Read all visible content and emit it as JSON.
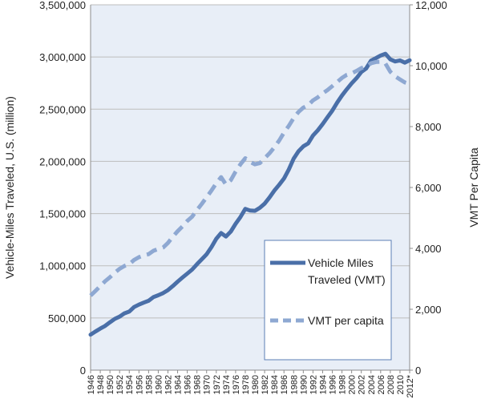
{
  "chart_data": {
    "type": "line",
    "title": "",
    "xlabel": "",
    "ylabel": "Vehicle-Miles Traveled, U.S. (million)",
    "y2label": "VMT Per Capita",
    "ylim": [
      0,
      3500000
    ],
    "y2lim": [
      0,
      12000
    ],
    "grid": true,
    "legend_position": "bottom-right",
    "colors": {
      "plot_bg": "#e8eef7",
      "grid": "#bdbdbd",
      "vmt": "#4a6fa8",
      "per_capita": "#8ea8d2",
      "legend_border": "#5b7fb6"
    },
    "x": [
      1946,
      1947,
      1948,
      1949,
      1950,
      1951,
      1952,
      1953,
      1954,
      1955,
      1956,
      1957,
      1958,
      1959,
      1960,
      1961,
      1962,
      1963,
      1964,
      1965,
      1966,
      1967,
      1968,
      1969,
      1970,
      1971,
      1972,
      1973,
      1974,
      1975,
      1976,
      1977,
      1978,
      1979,
      1980,
      1981,
      1982,
      1983,
      1984,
      1985,
      1986,
      1987,
      1988,
      1989,
      1990,
      1991,
      1992,
      1993,
      1994,
      1995,
      1996,
      1997,
      1998,
      1999,
      2000,
      2001,
      2002,
      2003,
      2004,
      2005,
      2006,
      2007,
      2008,
      2009,
      2010,
      2011,
      2012
    ],
    "x_tick_labels": [
      "1946",
      "1948",
      "1950",
      "1952",
      "1954",
      "1956",
      "1958",
      "1960",
      "1962",
      "1964",
      "1966",
      "1968",
      "1970",
      "1972",
      "1974",
      "1976",
      "1978",
      "1980",
      "1982",
      "1984",
      "1986",
      "1988",
      "1990",
      "1992",
      "1994",
      "1996",
      "1998",
      "2000",
      "2002",
      "2004",
      "2006",
      "2008",
      "2010",
      "2012*"
    ],
    "y_tick_labels": [
      "0",
      "500,000",
      "1,000,000",
      "1,500,000",
      "2,000,000",
      "2,500,000",
      "3,000,000",
      "3,500,000"
    ],
    "y_tick_values": [
      0,
      500000,
      1000000,
      1500000,
      2000000,
      2500000,
      3000000,
      3500000
    ],
    "y2_tick_labels": [
      "0",
      "2,000",
      "4,000",
      "6,000",
      "8,000",
      "10,000",
      "12,000"
    ],
    "y2_tick_values": [
      0,
      2000,
      4000,
      6000,
      8000,
      10000,
      12000
    ],
    "series": [
      {
        "name": "Vehicle Miles Traveled (VMT)",
        "legend_lines": [
          "Vehicle Miles",
          "Traveled (VMT)"
        ],
        "axis": "left",
        "style": "solid",
        "values": [
          340000,
          370000,
          398000,
          424000,
          458000,
          491000,
          513000,
          544000,
          561000,
          605000,
          628000,
          647000,
          665000,
          700000,
          718000,
          738000,
          767000,
          805000,
          847000,
          887000,
          925000,
          963000,
          1015000,
          1062000,
          1110000,
          1179000,
          1259000,
          1313000,
          1280000,
          1328000,
          1402000,
          1467000,
          1545000,
          1529000,
          1527000,
          1555000,
          1595000,
          1653000,
          1720000,
          1775000,
          1835000,
          1921000,
          2026000,
          2096000,
          2144000,
          2172000,
          2247000,
          2297000,
          2358000,
          2423000,
          2486000,
          2562000,
          2631000,
          2691000,
          2747000,
          2797000,
          2856000,
          2890000,
          2965000,
          2989000,
          3014000,
          3031000,
          2977000,
          2957000,
          2967000,
          2946000,
          2969000
        ]
      },
      {
        "name": "VMT per capita",
        "axis": "right",
        "style": "dashed",
        "values": [
          2450,
          2600,
          2760,
          2920,
          3050,
          3200,
          3330,
          3420,
          3480,
          3620,
          3710,
          3770,
          3810,
          3920,
          3980,
          4030,
          4180,
          4380,
          4560,
          4720,
          4900,
          5040,
          5260,
          5460,
          5680,
          5900,
          6140,
          6340,
          6100,
          6240,
          6520,
          6760,
          6960,
          6840,
          6760,
          6800,
          6960,
          7120,
          7320,
          7540,
          7800,
          8020,
          8280,
          8480,
          8620,
          8700,
          8860,
          8960,
          9090,
          9200,
          9330,
          9460,
          9600,
          9700,
          9750,
          9830,
          9920,
          9970,
          10080,
          10120,
          10130,
          10070,
          9800,
          9650,
          9550,
          9450,
          9400
        ]
      }
    ]
  }
}
